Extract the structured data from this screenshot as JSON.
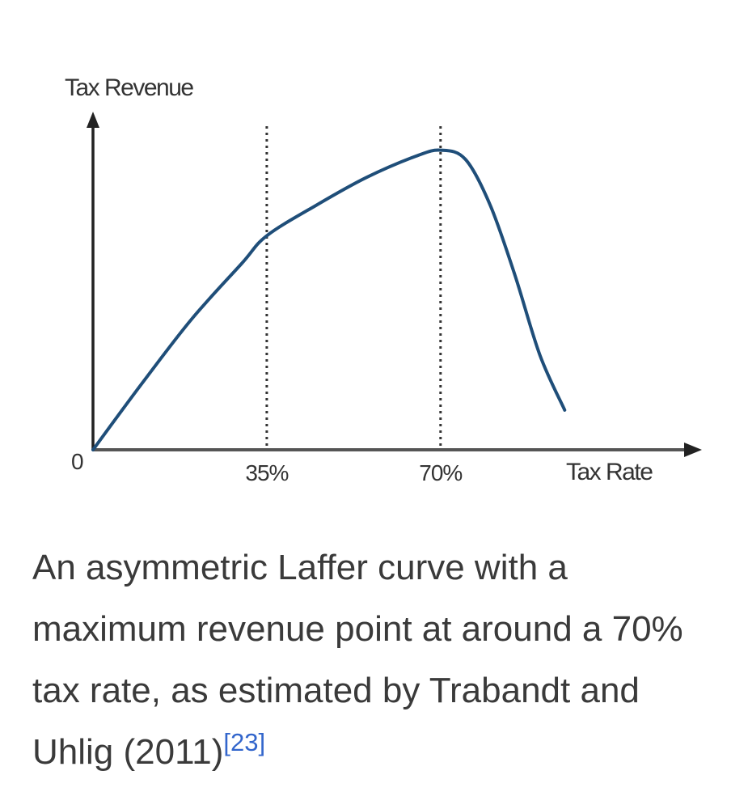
{
  "chart_data": {
    "type": "line",
    "ylabel": "Tax Revenue",
    "xlabel": "Tax Rate",
    "origin_label": "0",
    "xlim": [
      0,
      100
    ],
    "ylim": [
      0,
      100
    ],
    "x_ticks": [
      {
        "value": 35,
        "label": "35%"
      },
      {
        "value": 70,
        "label": "70%"
      }
    ],
    "reference_lines": [
      {
        "x": 35,
        "style": "dotted"
      },
      {
        "x": 70,
        "style": "dotted"
      }
    ],
    "series": [
      {
        "color": "#1f4e79",
        "points": [
          [
            0,
            0
          ],
          [
            10,
            22
          ],
          [
            20,
            43
          ],
          [
            30,
            61
          ],
          [
            35,
            70
          ],
          [
            45,
            80
          ],
          [
            55,
            89
          ],
          [
            65,
            96
          ],
          [
            70,
            98
          ],
          [
            75,
            95
          ],
          [
            80,
            80
          ],
          [
            85,
            57
          ],
          [
            90,
            31
          ],
          [
            95,
            13
          ]
        ]
      }
    ]
  },
  "caption": {
    "text": "An asymmetric Laffer curve with a maximum revenue point at around a 70% tax rate, as estimated by Trabandt and Uhlig (2011)",
    "citation": "[23]"
  }
}
